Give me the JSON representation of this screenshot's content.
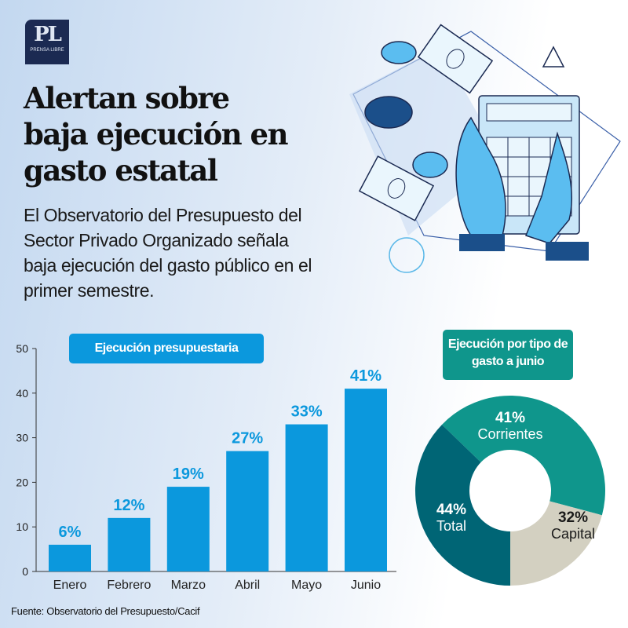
{
  "logo": {
    "mark": "PL",
    "name": "PRENSA LIBRE"
  },
  "headline": "Alertan sobre baja ejecución en gasto estatal",
  "subtitle": "El Observatorio del Presupuesto del Sector Privado Organizado señala baja ejecución del gasto público en el primer semestre.",
  "source": "Fuente: Observatorio del Presupuesto/Cacif",
  "colors": {
    "bar": "#0b98dd",
    "corrientes": "#0f968c",
    "capital": "#d3d0c1",
    "total": "#006575"
  },
  "chart_data": [
    {
      "type": "bar",
      "title": "Ejecución presupuestaria",
      "categories": [
        "Enero",
        "Febrero",
        "Marzo",
        "Abril",
        "Mayo",
        "Junio"
      ],
      "values": [
        6,
        12,
        19,
        27,
        33,
        41
      ],
      "labels": [
        "6%",
        "12%",
        "19%",
        "27%",
        "33%",
        "41%"
      ],
      "ylim": [
        0,
        50
      ],
      "yticks": [
        0,
        10,
        20,
        30,
        40,
        50
      ],
      "xlabel": "",
      "ylabel": ""
    },
    {
      "type": "pie",
      "title": "Ejecución por tipo de gasto a junio",
      "slices": [
        {
          "name": "Corrientes",
          "value": 41,
          "label": "41%"
        },
        {
          "name": "Capital",
          "value": 32,
          "label": "32%"
        },
        {
          "name": "Total",
          "value": 44,
          "label": "44%"
        }
      ]
    }
  ]
}
